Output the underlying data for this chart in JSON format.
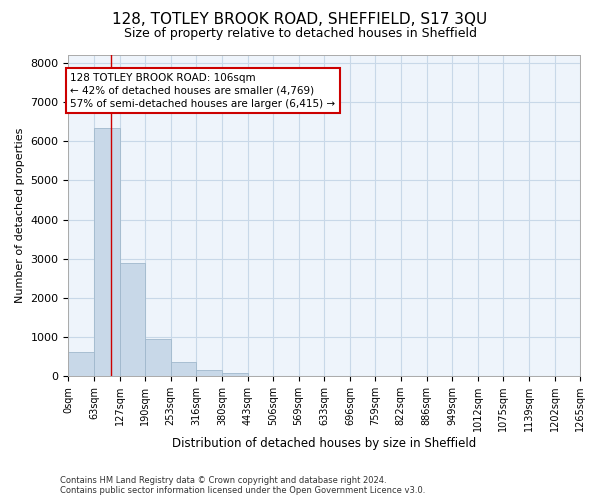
{
  "title": "128, TOTLEY BROOK ROAD, SHEFFIELD, S17 3QU",
  "subtitle": "Size of property relative to detached houses in Sheffield",
  "xlabel": "Distribution of detached houses by size in Sheffield",
  "ylabel": "Number of detached properties",
  "footer_line1": "Contains HM Land Registry data © Crown copyright and database right 2024.",
  "footer_line2": "Contains public sector information licensed under the Open Government Licence v3.0.",
  "bar_edges": [
    0,
    63,
    127,
    190,
    253,
    316,
    380,
    443,
    506,
    569,
    633,
    696,
    759,
    822,
    886,
    949,
    1012,
    1075,
    1139,
    1202,
    1265
  ],
  "bar_heights": [
    620,
    6340,
    2900,
    960,
    360,
    150,
    90,
    0,
    0,
    0,
    0,
    0,
    0,
    0,
    0,
    0,
    0,
    0,
    0,
    0
  ],
  "bar_color": "#c8d8e8",
  "bar_edge_color": "#a0b8cc",
  "property_size": 106,
  "red_line_color": "#cc0000",
  "annotation_text": "128 TOTLEY BROOK ROAD: 106sqm\n← 42% of detached houses are smaller (4,769)\n57% of semi-detached houses are larger (6,415) →",
  "annotation_box_color": "#ffffff",
  "annotation_box_edge": "#cc0000",
  "ylim": [
    0,
    8200
  ],
  "yticks": [
    0,
    1000,
    2000,
    3000,
    4000,
    5000,
    6000,
    7000,
    8000
  ],
  "grid_color": "#c8d8e8",
  "background_color": "#eef4fb",
  "title_fontsize": 11,
  "subtitle_fontsize": 9,
  "tick_label_fontsize": 7,
  "ylabel_fontsize": 8,
  "xlabel_fontsize": 8.5,
  "annotation_fontsize": 7.5
}
